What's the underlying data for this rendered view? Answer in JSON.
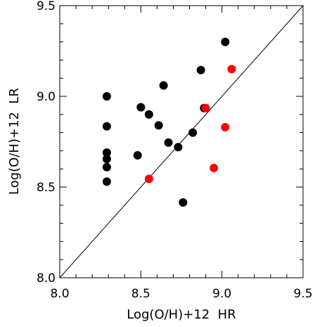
{
  "chart_data": {
    "type": "scatter",
    "title": "",
    "xlabel": "Log(O/H)+12  HR",
    "ylabel": "Log(O/H)+12  LR",
    "xlim": [
      8.0,
      9.5
    ],
    "ylim": [
      8.0,
      9.5
    ],
    "x_ticks": [
      "8.0",
      "8.5",
      "9.0",
      "9.5"
    ],
    "y_ticks": [
      "8.0",
      "8.5",
      "9.0",
      "9.5"
    ],
    "grid": false,
    "reference_line": {
      "x": [
        8.0,
        9.5
      ],
      "y": [
        8.0,
        9.5
      ]
    },
    "series": [
      {
        "color": "#000000",
        "points": [
          {
            "x": 8.29,
            "y": 9.0
          },
          {
            "x": 8.29,
            "y": 8.835
          },
          {
            "x": 8.29,
            "y": 8.69
          },
          {
            "x": 8.29,
            "y": 8.655
          },
          {
            "x": 8.29,
            "y": 8.61
          },
          {
            "x": 8.29,
            "y": 8.53
          },
          {
            "x": 8.48,
            "y": 8.675
          },
          {
            "x": 8.5,
            "y": 8.94
          },
          {
            "x": 8.55,
            "y": 8.9
          },
          {
            "x": 8.61,
            "y": 8.84
          },
          {
            "x": 8.64,
            "y": 9.06
          },
          {
            "x": 8.67,
            "y": 8.745
          },
          {
            "x": 8.73,
            "y": 8.72
          },
          {
            "x": 8.76,
            "y": 8.415
          },
          {
            "x": 8.82,
            "y": 8.8
          },
          {
            "x": 8.87,
            "y": 9.145
          },
          {
            "x": 8.89,
            "y": 8.935
          },
          {
            "x": 9.02,
            "y": 9.3
          }
        ]
      },
      {
        "color": "#ff0000",
        "points": [
          {
            "x": 8.55,
            "y": 8.545
          },
          {
            "x": 8.9,
            "y": 8.935
          },
          {
            "x": 8.95,
            "y": 8.605
          },
          {
            "x": 9.02,
            "y": 8.83
          },
          {
            "x": 9.06,
            "y": 9.15
          }
        ]
      }
    ]
  }
}
